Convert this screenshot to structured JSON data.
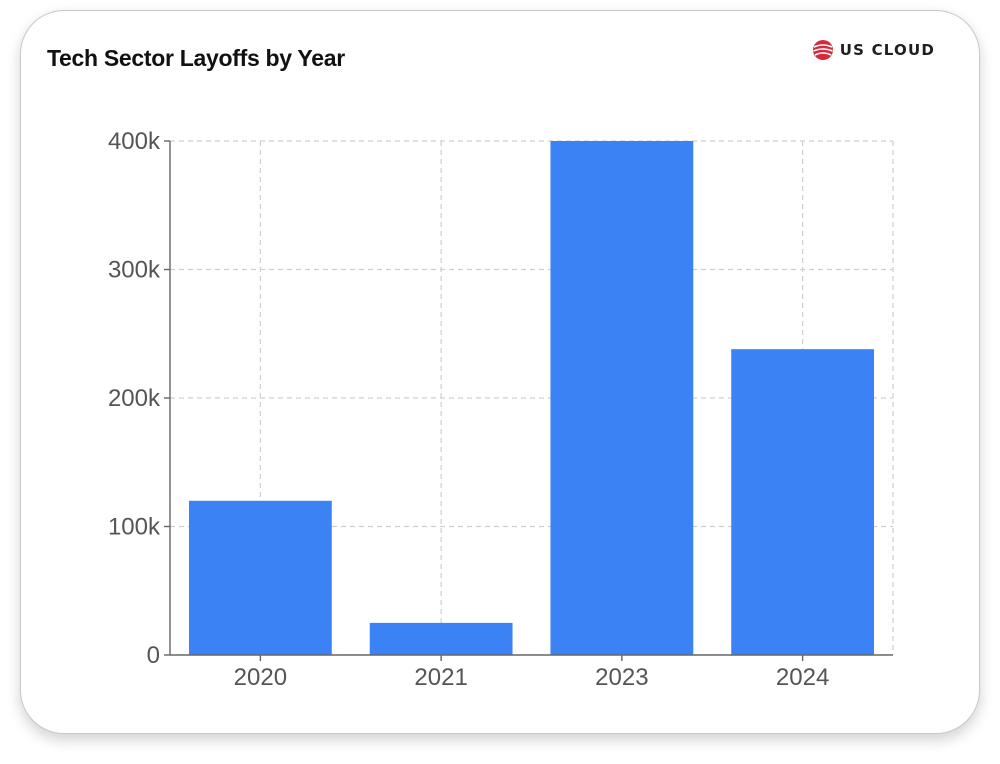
{
  "chart_data": {
    "type": "bar",
    "title": "Tech Sector Layoffs by Year",
    "categories": [
      "2020",
      "2021",
      "2023",
      "2024"
    ],
    "values": [
      120000,
      25000,
      400000,
      238000
    ],
    "ylim": [
      0,
      400000
    ],
    "yticks": [
      0,
      100000,
      200000,
      300000,
      400000
    ],
    "ytick_labels": [
      "0",
      "100k",
      "200k",
      "300k",
      "400k"
    ],
    "xlabel": "",
    "ylabel": "",
    "grid": true,
    "bar_color": "#3b82f4"
  },
  "brand": {
    "logo_text": "US CLOUD",
    "logo_color": "#d42a3c"
  }
}
